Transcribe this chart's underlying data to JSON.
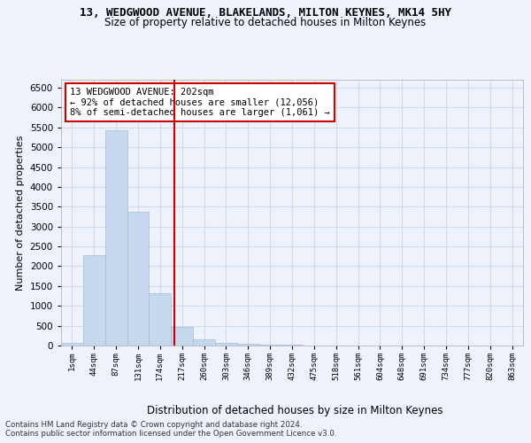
{
  "title": "13, WEDGWOOD AVENUE, BLAKELANDS, MILTON KEYNES, MK14 5HY",
  "subtitle": "Size of property relative to detached houses in Milton Keynes",
  "xlabel": "Distribution of detached houses by size in Milton Keynes",
  "ylabel": "Number of detached properties",
  "footnote1": "Contains HM Land Registry data © Crown copyright and database right 2024.",
  "footnote2": "Contains public sector information licensed under the Open Government Licence v3.0.",
  "annotation_line1": "13 WEDGWOOD AVENUE: 202sqm",
  "annotation_line2": "← 92% of detached houses are smaller (12,056)",
  "annotation_line3": "8% of semi-detached houses are larger (1,061) →",
  "bar_color": "#c5d8ed",
  "bar_edge_color": "#a0bcd8",
  "grid_color": "#d0daea",
  "vline_color": "#cc0000",
  "background_color": "#eef2fb",
  "categories": [
    "1sqm",
    "44sqm",
    "87sqm",
    "131sqm",
    "174sqm",
    "217sqm",
    "260sqm",
    "303sqm",
    "346sqm",
    "389sqm",
    "432sqm",
    "475sqm",
    "518sqm",
    "561sqm",
    "604sqm",
    "648sqm",
    "691sqm",
    "734sqm",
    "777sqm",
    "820sqm",
    "863sqm"
  ],
  "values": [
    70,
    2280,
    5430,
    3380,
    1310,
    475,
    160,
    75,
    50,
    30,
    20,
    10,
    5,
    3,
    2,
    1,
    1,
    1,
    0,
    0,
    0
  ],
  "vline_x": 4.65,
  "ylim": [
    0,
    6700
  ],
  "yticks": [
    0,
    500,
    1000,
    1500,
    2000,
    2500,
    3000,
    3500,
    4000,
    4500,
    5000,
    5500,
    6000,
    6500
  ]
}
